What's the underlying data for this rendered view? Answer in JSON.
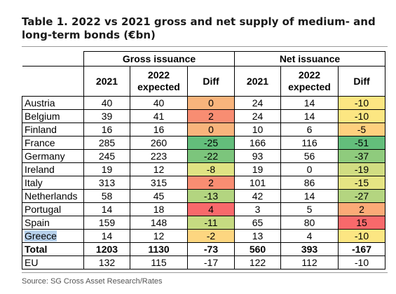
{
  "title_line1": "Table 1. 2022 vs 2021 gross and net supply of medium- and",
  "title_line2": "long-term bonds (€bn)",
  "groups": {
    "gross": "Gross issuance",
    "net": "Net issuance"
  },
  "columns": {
    "y2021": "2021",
    "y2022_line1": "2022",
    "y2022_line2": "expected",
    "diff": "Diff"
  },
  "rows": [
    {
      "country": "Austria",
      "g2021": "40",
      "g2022": "40",
      "gdiff": "0",
      "gcolor": "#f8b47c",
      "n2021": "24",
      "n2022": "14",
      "ndiff": "-10",
      "ncolor": "#fce682"
    },
    {
      "country": "Belgium",
      "g2021": "39",
      "g2022": "41",
      "gdiff": "2",
      "gcolor": "#f88d72",
      "n2021": "24",
      "n2022": "14",
      "ndiff": "-10",
      "ncolor": "#fce682"
    },
    {
      "country": "Finland",
      "g2021": "16",
      "g2022": "16",
      "gdiff": "0",
      "gcolor": "#f8b47c",
      "n2021": "10",
      "n2022": "6",
      "ndiff": "-5",
      "ncolor": "#fed07e"
    },
    {
      "country": "France",
      "g2021": "285",
      "g2022": "260",
      "gdiff": "-25",
      "gcolor": "#63be7b",
      "n2021": "166",
      "n2022": "116",
      "ndiff": "-51",
      "ncolor": "#63be7b"
    },
    {
      "country": "Germany",
      "g2021": "245",
      "g2022": "223",
      "gdiff": "-22",
      "gcolor": "#7cc57c",
      "n2021": "93",
      "n2022": "56",
      "ndiff": "-37",
      "ncolor": "#8fcb7d"
    },
    {
      "country": "Ireland",
      "g2021": "19",
      "g2022": "12",
      "gdiff": "-8",
      "gcolor": "#e0e383",
      "n2021": "19",
      "n2022": "0",
      "ndiff": "-19",
      "ncolor": "#d1dd82"
    },
    {
      "country": "Italy",
      "g2021": "313",
      "g2022": "315",
      "gdiff": "2",
      "gcolor": "#f88d72",
      "n2021": "101",
      "n2022": "86",
      "ndiff": "-15",
      "ncolor": "#e5e483"
    },
    {
      "country": "Netherlands",
      "g2021": "58",
      "g2022": "45",
      "gdiff": "-13",
      "gcolor": "#b3d580",
      "n2021": "42",
      "n2022": "14",
      "ndiff": "-27",
      "ncolor": "#b4d580"
    },
    {
      "country": "Portugal",
      "g2021": "14",
      "g2022": "18",
      "gdiff": "4",
      "gcolor": "#f8696b",
      "n2021": "3",
      "n2022": "5",
      "ndiff": "2",
      "ncolor": "#fbaa77"
    },
    {
      "country": "Spain",
      "g2021": "159",
      "g2022": "148",
      "gdiff": "-11",
      "gcolor": "#c6da81",
      "n2021": "65",
      "n2022": "80",
      "ndiff": "15",
      "ncolor": "#f8696b"
    },
    {
      "country": "Greece",
      "g2021": "14",
      "g2022": "12",
      "gdiff": "-2",
      "gcolor": "#fdd680",
      "n2021": "13",
      "n2022": "4",
      "ndiff": "-10",
      "ncolor": "#fce682"
    }
  ],
  "total": {
    "country": "Total",
    "g2021": "1203",
    "g2022": "1130",
    "gdiff": "-73",
    "n2021": "560",
    "n2022": "393",
    "ndiff": "-167"
  },
  "eu": {
    "country": "EU",
    "g2021": "132",
    "g2022": "115",
    "gdiff": "-17",
    "n2021": "122",
    "n2022": "112",
    "ndiff": "-10"
  },
  "source": "Source: SG Cross Asset Research/Rates"
}
